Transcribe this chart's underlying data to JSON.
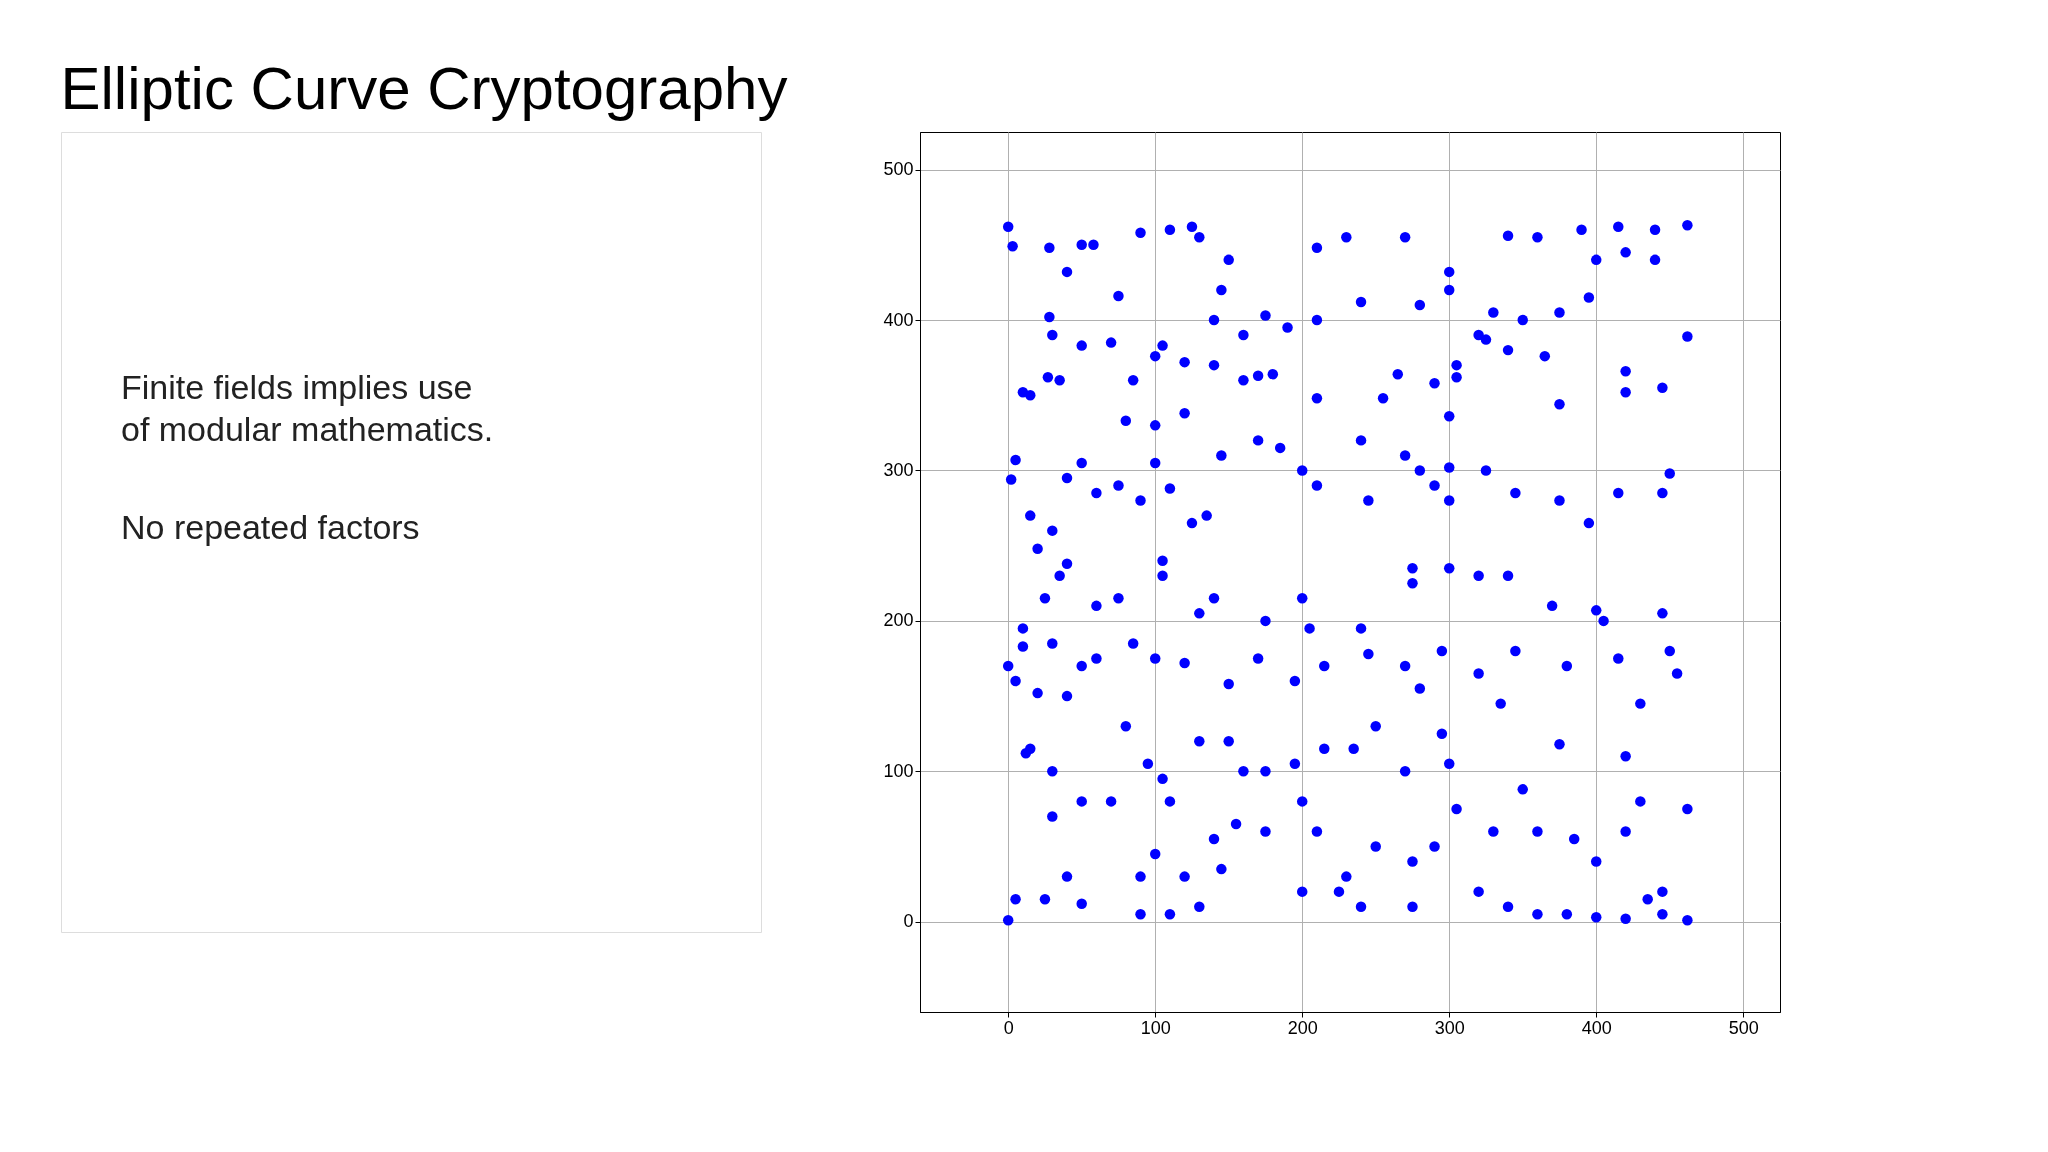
{
  "chart_data": {
    "type": "scatter",
    "title": "Elliptic Curve Cryptography",
    "annotations": [
      "Finite fields implies use of modular mathematics.",
      "No repeated factors"
    ],
    "x": [
      0,
      0,
      3,
      462,
      462,
      462,
      462,
      2,
      5,
      10,
      15,
      0,
      5,
      12,
      15,
      28,
      30,
      27,
      35,
      28,
      40,
      50,
      58,
      75,
      90,
      110,
      125,
      130,
      150,
      145,
      210,
      230,
      270,
      300,
      340,
      360,
      390,
      415,
      440,
      440,
      420,
      400,
      120,
      105,
      100,
      140,
      170,
      160,
      180,
      210,
      290,
      300,
      305,
      265,
      255,
      240,
      270,
      280,
      300,
      305,
      320,
      365,
      375,
      420,
      420,
      445,
      15,
      20,
      30,
      40,
      50,
      60,
      75,
      90,
      100,
      110,
      125,
      135,
      145,
      170,
      185,
      200,
      210,
      245,
      290,
      300,
      325,
      345,
      375,
      395,
      415,
      445,
      450,
      25,
      35,
      40,
      60,
      75,
      105,
      105,
      130,
      140,
      175,
      200,
      205,
      240,
      275,
      275,
      300,
      320,
      340,
      370,
      400,
      405,
      445,
      450,
      10,
      10,
      30,
      50,
      60,
      85,
      100,
      120,
      150,
      170,
      195,
      215,
      245,
      270,
      280,
      295,
      320,
      345,
      380,
      415,
      455,
      20,
      40,
      80,
      95,
      105,
      110,
      130,
      150,
      160,
      175,
      195,
      215,
      235,
      250,
      270,
      295,
      300,
      335,
      350,
      375,
      420,
      430,
      30,
      30,
      50,
      70,
      90,
      100,
      120,
      140,
      155,
      175,
      200,
      210,
      230,
      250,
      275,
      290,
      305,
      330,
      360,
      385,
      400,
      420,
      430,
      445,
      5,
      25,
      40,
      50,
      90,
      110,
      130,
      145,
      200,
      225,
      240,
      275,
      320,
      340,
      360,
      380,
      400,
      420,
      435,
      445,
      190,
      210,
      240,
      280,
      300,
      330,
      350,
      375,
      395,
      340,
      325,
      120,
      100,
      70,
      50,
      80,
      85,
      140,
      175,
      160
    ],
    "series": [
      {
        "color": "#0000ff",
        "values": [
          1,
          462,
          449,
          463,
          1,
          389,
          75,
          294,
          307,
          352,
          350,
          170,
          160,
          112,
          115,
          402,
          390,
          362,
          360,
          448,
          432,
          450,
          450,
          416,
          458,
          460,
          462,
          455,
          440,
          420,
          448,
          455,
          455,
          432,
          456,
          455,
          460,
          462,
          460,
          440,
          445,
          440,
          372,
          383,
          376,
          370,
          363,
          360,
          364,
          348,
          358,
          336,
          362,
          364,
          348,
          320,
          310,
          300,
          302,
          370,
          390,
          376,
          344,
          366,
          352,
          355,
          270,
          248,
          260,
          295,
          305,
          285,
          290,
          280,
          305,
          288,
          265,
          270,
          310,
          320,
          315,
          300,
          290,
          280,
          290,
          280,
          300,
          285,
          280,
          265,
          285,
          285,
          298,
          215,
          230,
          238,
          210,
          215,
          230,
          240,
          205,
          215,
          200,
          215,
          195,
          195,
          235,
          225,
          235,
          230,
          230,
          210,
          207,
          200,
          205,
          180,
          195,
          183,
          185,
          170,
          175,
          185,
          175,
          172,
          158,
          175,
          160,
          170,
          178,
          170,
          155,
          180,
          165,
          180,
          170,
          175,
          165,
          152,
          150,
          130,
          105,
          95,
          80,
          120,
          120,
          100,
          100,
          105,
          115,
          115,
          130,
          100,
          125,
          105,
          145,
          88,
          118,
          110,
          145,
          100,
          70,
          80,
          80,
          30,
          45,
          30,
          55,
          65,
          60,
          80,
          60,
          30,
          50,
          40,
          50,
          75,
          60,
          60,
          55,
          40,
          60,
          80,
          20,
          15,
          15,
          30,
          12,
          5,
          5,
          10,
          35,
          20,
          20,
          10,
          10,
          20,
          10,
          5,
          5,
          3,
          2,
          15,
          5,
          395,
          400,
          412,
          410,
          420,
          405,
          400,
          405,
          415,
          380,
          387,
          338,
          330,
          385,
          383,
          333,
          360,
          400,
          403,
          390
        ]
      }
    ],
    "xlim": [
      -60,
      525
    ],
    "ylim": [
      -60,
      525
    ],
    "xticks": [
      0,
      100,
      200,
      300,
      400,
      500
    ],
    "yticks": [
      0,
      100,
      200,
      300,
      400,
      500
    ],
    "grid": true,
    "marker": "circle"
  }
}
